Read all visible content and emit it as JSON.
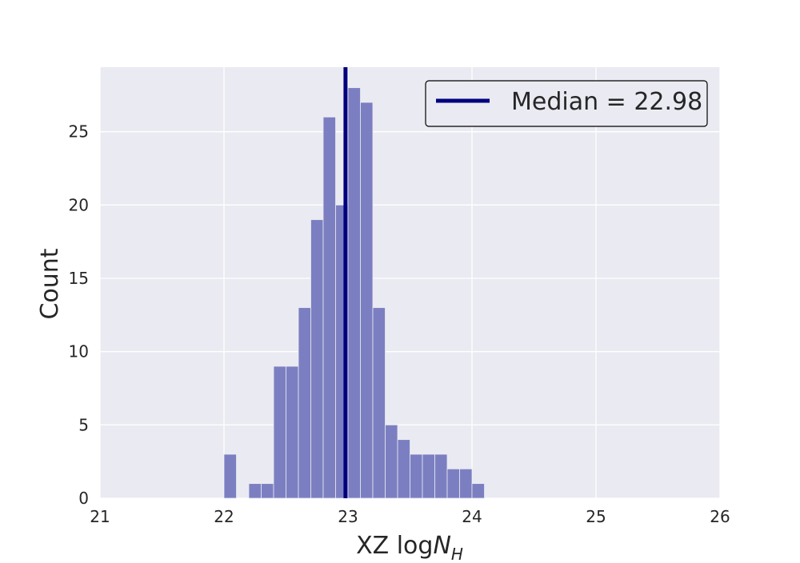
{
  "chart_data": {
    "type": "bar",
    "xlabel": "XZ log",
    "xlabel_math": "N",
    "xlabel_sub": "H",
    "ylabel": "Count",
    "xlim": [
      21,
      26
    ],
    "ylim": [
      0,
      29.4
    ],
    "xticks": [
      "21",
      "22",
      "23",
      "24",
      "25",
      "26"
    ],
    "yticks": [
      "0",
      "5",
      "10",
      "15",
      "20",
      "25"
    ],
    "bin_width": 0.1,
    "bins": [
      {
        "x": 22.0,
        "count": 3
      },
      {
        "x": 22.1,
        "count": 0
      },
      {
        "x": 22.2,
        "count": 1
      },
      {
        "x": 22.3,
        "count": 1
      },
      {
        "x": 22.4,
        "count": 9
      },
      {
        "x": 22.5,
        "count": 9
      },
      {
        "x": 22.6,
        "count": 13
      },
      {
        "x": 22.7,
        "count": 19
      },
      {
        "x": 22.8,
        "count": 26
      },
      {
        "x": 22.9,
        "count": 20
      },
      {
        "x": 23.0,
        "count": 28
      },
      {
        "x": 23.1,
        "count": 27
      },
      {
        "x": 23.2,
        "count": 13
      },
      {
        "x": 23.3,
        "count": 5
      },
      {
        "x": 23.4,
        "count": 4
      },
      {
        "x": 23.5,
        "count": 3
      },
      {
        "x": 23.6,
        "count": 3
      },
      {
        "x": 23.7,
        "count": 3
      },
      {
        "x": 23.8,
        "count": 2
      },
      {
        "x": 23.9,
        "count": 2
      },
      {
        "x": 24.0,
        "count": 1
      }
    ],
    "median": 22.98,
    "legend": {
      "label": "Median = 22.98",
      "placement": "top-right"
    },
    "grid": true,
    "colors": {
      "background": "#eaeaf2",
      "grid": "#ffffff",
      "bar": "#7b7fc1",
      "median_line": "#00007f",
      "text": "#262626"
    }
  }
}
